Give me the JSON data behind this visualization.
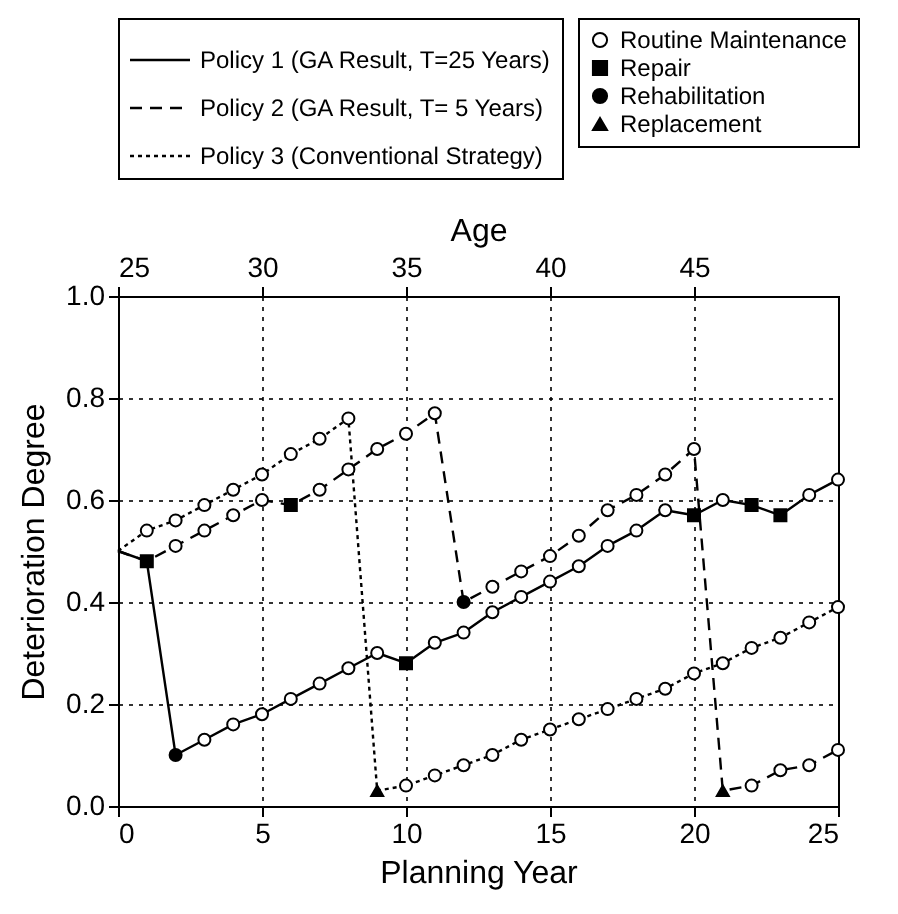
{
  "chart_data": {
    "type": "line",
    "xlabel": "Planning Year",
    "ylabel": "Deterioration Degree",
    "x2label": "Age",
    "xlim": [
      0,
      25
    ],
    "xticks": [
      0,
      5,
      10,
      15,
      20,
      25
    ],
    "x2lim": [
      25,
      50
    ],
    "x2ticks": [
      25,
      30,
      35,
      40,
      45
    ],
    "ylim": [
      0,
      1
    ],
    "yticks": [
      {
        "value": 0,
        "label": "0.0"
      },
      0.2,
      0.4,
      0.6,
      0.8,
      {
        "value": 1,
        "label": "1.0"
      }
    ],
    "grid": true,
    "legend": "top",
    "series": [
      {
        "name": "Policy 1 (GA Result, T=25 Years)",
        "type": "line",
        "line_style": "solid",
        "marker": "none",
        "color": "#000000",
        "x": [
          0,
          1,
          2,
          3,
          4,
          5,
          6,
          7,
          8,
          9,
          10,
          11,
          12,
          13,
          14,
          15,
          16,
          17,
          18,
          19,
          20,
          21,
          22,
          23,
          24,
          25
        ],
        "values": [
          0.5,
          0.48,
          0.1,
          0.13,
          0.16,
          0.18,
          0.21,
          0.24,
          0.27,
          0.3,
          0.28,
          0.32,
          0.34,
          0.38,
          0.41,
          0.44,
          0.47,
          0.51,
          0.54,
          0.58,
          0.57,
          0.6,
          0.59,
          0.57,
          0.61,
          0.64
        ]
      },
      {
        "name": "Policy 2 (GA Result, T=  5 Years)",
        "type": "line",
        "line_style": "dashed",
        "marker": "none",
        "color": "#000000",
        "x": [
          0,
          1,
          2,
          3,
          4,
          5,
          6,
          7,
          8,
          9,
          10,
          11,
          12,
          13,
          14,
          15,
          16,
          17,
          18,
          19,
          20,
          21,
          22,
          23,
          24,
          25
        ],
        "values": [
          0.5,
          0.48,
          0.51,
          0.54,
          0.57,
          0.6,
          0.59,
          0.62,
          0.66,
          0.7,
          0.73,
          0.77,
          0.4,
          0.43,
          0.46,
          0.49,
          0.53,
          0.58,
          0.61,
          0.65,
          0.7,
          0.03,
          0.04,
          0.07,
          0.08,
          0.11
        ]
      },
      {
        "name": "Policy 3 (Conventional Strategy)",
        "type": "line",
        "line_style": "dotted",
        "marker": "none",
        "color": "#000000",
        "x": [
          0,
          1,
          2,
          3,
          4,
          5,
          6,
          7,
          8,
          9,
          10,
          11,
          12,
          13,
          14,
          15,
          16,
          17,
          18,
          19,
          20,
          21,
          22,
          23,
          24,
          25
        ],
        "values": [
          0.5,
          0.54,
          0.56,
          0.59,
          0.62,
          0.65,
          0.69,
          0.72,
          0.76,
          0.03,
          0.04,
          0.06,
          0.08,
          0.1,
          0.13,
          0.15,
          0.17,
          0.19,
          0.21,
          0.23,
          0.26,
          0.28,
          0.31,
          0.33,
          0.36,
          0.39
        ]
      },
      {
        "name": "Routine Maintenance",
        "type": "scatter",
        "marker": "circle",
        "color": "#000000",
        "x": [
          3,
          4,
          5,
          6,
          7,
          8,
          9,
          11,
          12,
          13,
          14,
          15,
          16,
          17,
          18,
          19,
          21,
          24,
          25,
          2,
          3,
          4,
          5,
          7,
          8,
          9,
          10,
          11,
          13,
          14,
          15,
          16,
          17,
          18,
          19,
          20,
          22,
          23,
          24,
          25,
          1,
          2,
          3,
          4,
          5,
          6,
          7,
          8,
          10,
          11,
          12,
          13,
          14,
          15,
          16,
          17,
          18,
          19,
          20,
          21,
          22,
          23,
          24,
          25
        ],
        "values": [
          0.13,
          0.16,
          0.18,
          0.21,
          0.24,
          0.27,
          0.3,
          0.32,
          0.34,
          0.38,
          0.41,
          0.44,
          0.47,
          0.51,
          0.54,
          0.58,
          0.6,
          0.61,
          0.64,
          0.51,
          0.54,
          0.57,
          0.6,
          0.62,
          0.66,
          0.7,
          0.73,
          0.77,
          0.43,
          0.46,
          0.49,
          0.53,
          0.58,
          0.61,
          0.65,
          0.7,
          0.04,
          0.07,
          0.08,
          0.11,
          0.54,
          0.56,
          0.59,
          0.62,
          0.65,
          0.69,
          0.72,
          0.76,
          0.04,
          0.06,
          0.08,
          0.1,
          0.13,
          0.15,
          0.17,
          0.19,
          0.21,
          0.23,
          0.26,
          0.28,
          0.31,
          0.33,
          0.36,
          0.39
        ]
      },
      {
        "name": "Repair",
        "type": "scatter",
        "marker": "square",
        "color": "#000000",
        "x": [
          1,
          10,
          20,
          22,
          23,
          6
        ],
        "values": [
          0.48,
          0.28,
          0.57,
          0.59,
          0.57,
          0.59
        ]
      },
      {
        "name": "Rehabilitation",
        "type": "scatter",
        "marker": "circle",
        "color": "#000000",
        "x": [
          2,
          12
        ],
        "values": [
          0.1,
          0.4
        ]
      },
      {
        "name": "Replacement",
        "type": "scatter",
        "marker": "triangle",
        "color": "#000000",
        "x": [
          9,
          21
        ],
        "values": [
          0.03,
          0.03
        ]
      }
    ]
  }
}
